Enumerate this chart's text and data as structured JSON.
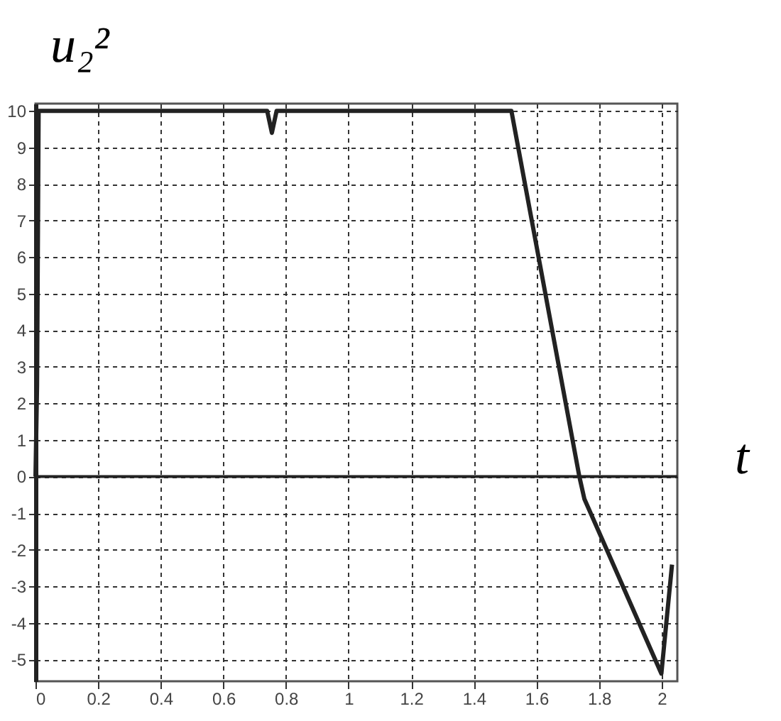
{
  "chart_data": {
    "type": "line",
    "xlabel": "t",
    "ylabel": "u₂²",
    "x": [
      0,
      0.005,
      0.01,
      0.74,
      0.755,
      0.77,
      1.52,
      1.737,
      1.753,
      1.999,
      2.033
    ],
    "series": [
      {
        "color": "#222222",
        "values": [
          0,
          2.5,
          10,
          10,
          9.4,
          10,
          10,
          0,
          -0.61,
          -5.39,
          -2.41
        ]
      }
    ],
    "xlim": [
      0,
      2.05
    ],
    "ylim": [
      -5.6,
      10.2
    ],
    "xticks": [
      0,
      0.2,
      0.4,
      0.6,
      0.8,
      1,
      1.2,
      1.4,
      1.6,
      1.8,
      2
    ],
    "yticks": [
      -5,
      -4,
      -3,
      -2,
      -1,
      0,
      1,
      2,
      3,
      4,
      5,
      6,
      7,
      8,
      9,
      10
    ],
    "ref_lines": [
      {
        "axis": "y",
        "value": 0,
        "color": "#222222",
        "line_style": "solid"
      }
    ],
    "grid": true,
    "marker": "none",
    "line_style": "solid"
  }
}
